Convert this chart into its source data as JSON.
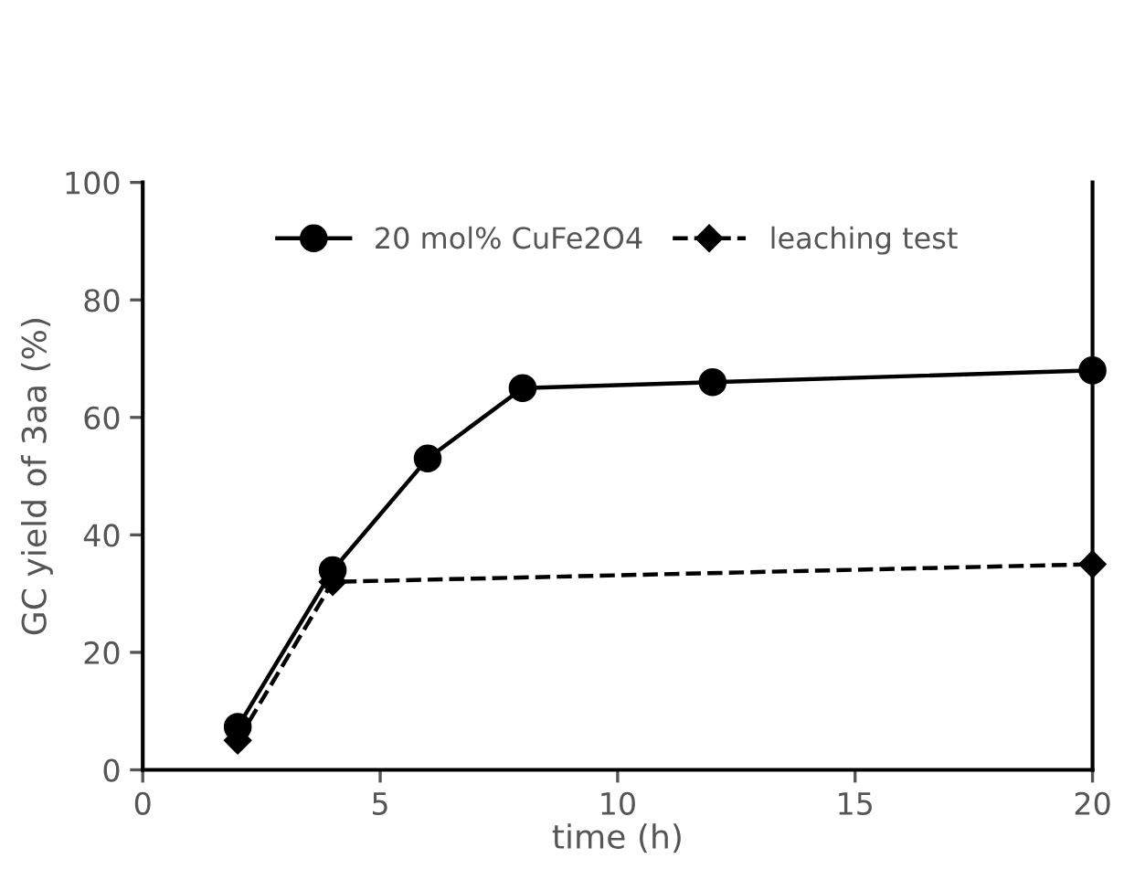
{
  "chart_data": {
    "type": "line",
    "xlabel": "time (h)",
    "ylabel": "GC yield of 3aa (%)",
    "xlim": [
      0,
      20
    ],
    "xticks": [
      0,
      5,
      10,
      15,
      20
    ],
    "ylim": [
      0,
      100
    ],
    "yticks": [
      0,
      20,
      40,
      60,
      80,
      100
    ],
    "grid": false,
    "legend": "top",
    "series": [
      {
        "name": "20 mol% CuFe2O4",
        "color": "#000000",
        "x": [
          2,
          4,
          6,
          8,
          12,
          20
        ],
        "values": [
          7.3,
          34,
          53,
          65,
          66,
          68
        ],
        "marker": "circle",
        "line_style": "solid"
      },
      {
        "name": "leaching test",
        "color": "#000000",
        "x": [
          2,
          4,
          20
        ],
        "values": [
          5,
          32,
          35
        ],
        "marker": "diamond",
        "line_style": "dashed"
      }
    ]
  }
}
